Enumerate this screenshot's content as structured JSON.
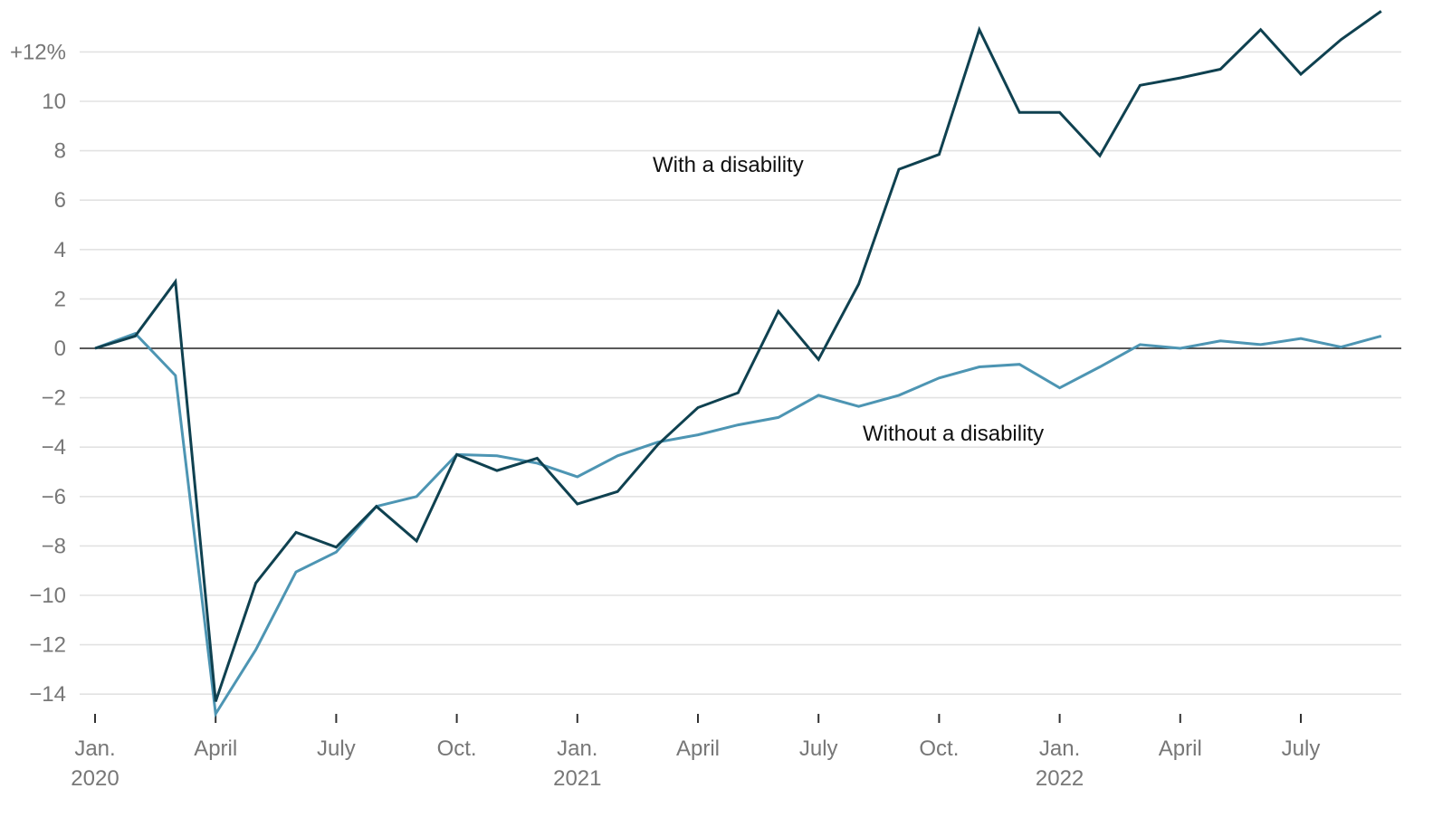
{
  "chart_data": {
    "type": "line",
    "title": "",
    "xlabel": "",
    "ylabel": "",
    "ylim": [
      -15,
      13.7
    ],
    "grid": true,
    "legend": "inline labels",
    "x": [
      "2020-01",
      "2020-02",
      "2020-03",
      "2020-04",
      "2020-05",
      "2020-06",
      "2020-07",
      "2020-08",
      "2020-09",
      "2020-10",
      "2020-11",
      "2020-12",
      "2021-01",
      "2021-02",
      "2021-03",
      "2021-04",
      "2021-05",
      "2021-06",
      "2021-07",
      "2021-08",
      "2021-09",
      "2021-10",
      "2021-11",
      "2021-12",
      "2022-01",
      "2022-02",
      "2022-03",
      "2022-04",
      "2022-05",
      "2022-06",
      "2022-07",
      "2022-08",
      "2022-09"
    ],
    "yticks": [
      {
        "value": 12,
        "label": "+12%"
      },
      {
        "value": 10,
        "label": "10"
      },
      {
        "value": 8,
        "label": "8"
      },
      {
        "value": 6,
        "label": "6"
      },
      {
        "value": 4,
        "label": "4"
      },
      {
        "value": 2,
        "label": "2"
      },
      {
        "value": 0,
        "label": "0"
      },
      {
        "value": -2,
        "label": "−2"
      },
      {
        "value": -4,
        "label": "−4"
      },
      {
        "value": -6,
        "label": "−6"
      },
      {
        "value": -8,
        "label": "−8"
      },
      {
        "value": -10,
        "label": "−10"
      },
      {
        "value": -12,
        "label": "−12"
      },
      {
        "value": -14,
        "label": "−14"
      }
    ],
    "xticks": [
      {
        "index": 0,
        "label": "Jan.",
        "year": "2020"
      },
      {
        "index": 3,
        "label": "April",
        "year": ""
      },
      {
        "index": 6,
        "label": "July",
        "year": ""
      },
      {
        "index": 9,
        "label": "Oct.",
        "year": ""
      },
      {
        "index": 12,
        "label": "Jan.",
        "year": "2021"
      },
      {
        "index": 15,
        "label": "April",
        "year": ""
      },
      {
        "index": 18,
        "label": "July",
        "year": ""
      },
      {
        "index": 21,
        "label": "Oct.",
        "year": ""
      },
      {
        "index": 24,
        "label": "Jan.",
        "year": "2022"
      },
      {
        "index": 27,
        "label": "April",
        "year": ""
      },
      {
        "index": 30,
        "label": "July",
        "year": ""
      }
    ],
    "series": [
      {
        "name": "With a disability",
        "color": "#0f4150",
        "values": [
          0,
          0.5,
          2.7,
          -14.3,
          -9.5,
          -7.45,
          -8.05,
          -6.4,
          -7.8,
          -4.3,
          -4.95,
          -4.45,
          -6.3,
          -5.8,
          -3.9,
          -2.4,
          -1.8,
          1.5,
          -0.45,
          2.6,
          7.25,
          7.85,
          12.9,
          9.55,
          9.55,
          7.8,
          10.65,
          10.95,
          11.3,
          12.9,
          11.1,
          12.5,
          13.65
        ]
      },
      {
        "name": "Without a disability",
        "color": "#4d95b3",
        "values": [
          0,
          0.6,
          -1.1,
          -14.8,
          -12.2,
          -9.05,
          -8.25,
          -6.4,
          -6.0,
          -4.3,
          -4.35,
          -4.65,
          -5.2,
          -4.35,
          -3.8,
          -3.5,
          -3.1,
          -2.8,
          -1.9,
          -2.35,
          -1.9,
          -1.2,
          -0.75,
          -0.65,
          -1.6,
          -0.75,
          0.15,
          0,
          0.3,
          0.15,
          0.4,
          0.05,
          0.5
        ]
      }
    ]
  }
}
